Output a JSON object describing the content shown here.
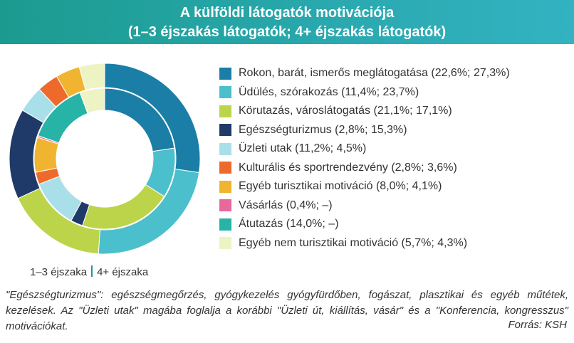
{
  "header": {
    "title": "A külföldi látogatók motivációja",
    "subtitle": "(1–3 éjszakás látogatók; 4+ éjszakás látogatók)"
  },
  "chart_data": {
    "type": "donut",
    "title": "A külföldi látogatók motivációja",
    "subtitle": "(1–3 éjszakás látogatók; 4+ éjszakás látogatók)",
    "series": [
      {
        "name": "1–3 éjszaka",
        "ring": "inner",
        "values": [
          22.6,
          11.4,
          21.1,
          2.8,
          11.2,
          2.8,
          8.0,
          0.4,
          14.0,
          5.7
        ]
      },
      {
        "name": "4+ éjszaka",
        "ring": "outer",
        "values": [
          27.3,
          23.7,
          17.1,
          15.3,
          4.5,
          3.6,
          4.1,
          null,
          null,
          4.3
        ]
      }
    ],
    "categories": [
      {
        "label": "Rokon, barát, ismerős meglátogatása (22,6%; 27,3%)",
        "color": "#1a7ea6"
      },
      {
        "label": "Üdülés, szórakozás (11,4%; 23,7%)",
        "color": "#4bbfcc"
      },
      {
        "label": "Körutazás, városlátogatás (21,1%; 17,1%)",
        "color": "#bcd44a"
      },
      {
        "label": "Egészségturizmus (2,8%; 15,3%)",
        "color": "#1f3a68"
      },
      {
        "label": "Üzleti utak (11,2%; 4,5%)",
        "color": "#a9dfe8"
      },
      {
        "label": "Kulturális és sportrendezvény (2,8%; 3,6%)",
        "color": "#ee6a2c"
      },
      {
        "label": "Egyéb turisztikai motiváció (8,0%; 4,1%)",
        "color": "#f0b431"
      },
      {
        "label": "Vásárlás (0,4%; –)",
        "color": "#e8689a"
      },
      {
        "label": "Átutazás (14,0%; –)",
        "color": "#27b3a6"
      },
      {
        "label": "Egyéb nem turisztikai motiváció (5,7%; 4,3%)",
        "color": "#eef3c4"
      }
    ]
  },
  "key": {
    "inner": "1–3 éjszaka",
    "outer": "4+ éjszaka"
  },
  "note": "\"Egészségturizmus\": egészségmegőrzés, gyógykezelés gyógyfürdőben, fogászat, plasztikai és egyéb műtétek, kezelések. Az \"Üzleti utak\" magába foglalja a korábbi \"Üzleti út, kiállítás, vásár\" és a \"Konferencia, kongresszus\" motivációkat.",
  "source": "Forrás: KSH"
}
